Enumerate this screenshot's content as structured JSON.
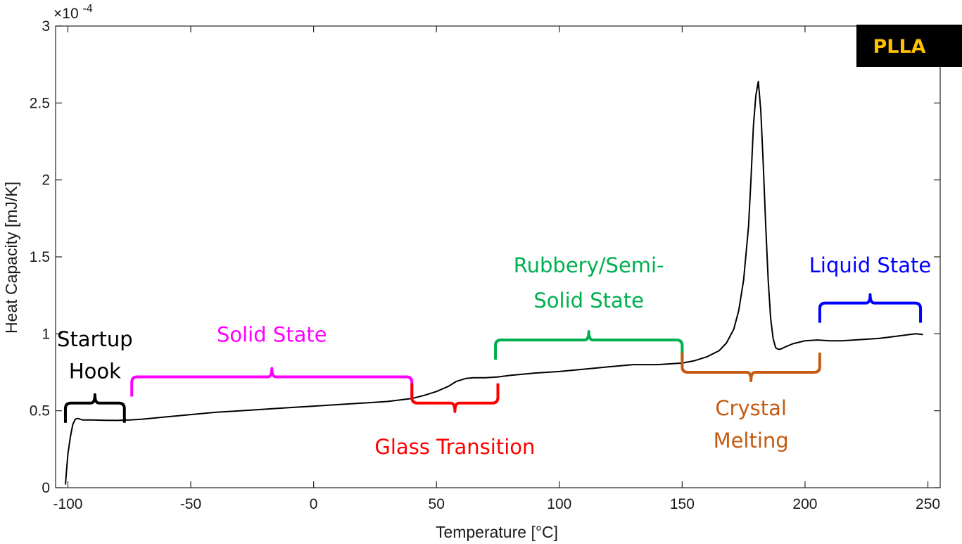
{
  "chart_data": {
    "type": "line",
    "xlabel": "Temperature [°C]",
    "ylabel": "Heat Capacity [mJ/K]",
    "y_exponent_label": "×10",
    "y_exponent_power": "-4",
    "xlim": [
      -105,
      255
    ],
    "ylim": [
      0,
      3
    ],
    "x_ticks": [
      -100,
      -50,
      0,
      50,
      100,
      150,
      200,
      250
    ],
    "x_tick_labels": [
      "-100",
      "-50",
      "0",
      "50",
      "100",
      "150",
      "200",
      "250"
    ],
    "y_ticks": [
      0,
      0.5,
      1,
      1.5,
      2,
      2.5,
      3
    ],
    "y_tick_labels": [
      "0",
      "0.5",
      "1",
      "1.5",
      "2",
      "2.5",
      "3"
    ],
    "grid": false,
    "badge": {
      "text": "PLLA",
      "background": "#000000",
      "color": "#ffc000"
    },
    "series": [
      {
        "color": "#000000",
        "x": [
          -101,
          -100.5,
          -100,
          -99,
          -98,
          -97,
          -96,
          -95,
          -94,
          -90,
          -85,
          -80,
          -75,
          -70,
          -60,
          -50,
          -40,
          -30,
          -20,
          -10,
          0,
          10,
          20,
          30,
          40,
          45,
          50,
          55,
          58,
          62,
          65,
          70,
          75,
          80,
          90,
          100,
          110,
          120,
          130,
          140,
          150,
          155,
          160,
          165,
          168,
          171,
          173,
          175,
          177,
          178,
          179,
          180,
          181,
          182,
          183,
          184,
          185,
          186,
          187,
          188,
          189,
          190,
          192,
          195,
          200,
          205,
          210,
          215,
          220,
          225,
          230,
          235,
          240,
          245,
          248
        ],
        "y": [
          0.02,
          0.12,
          0.22,
          0.33,
          0.41,
          0.445,
          0.45,
          0.445,
          0.44,
          0.44,
          0.438,
          0.437,
          0.44,
          0.445,
          0.46,
          0.475,
          0.49,
          0.5,
          0.51,
          0.52,
          0.53,
          0.54,
          0.55,
          0.56,
          0.58,
          0.6,
          0.625,
          0.66,
          0.69,
          0.71,
          0.715,
          0.715,
          0.72,
          0.73,
          0.745,
          0.755,
          0.77,
          0.785,
          0.8,
          0.8,
          0.81,
          0.825,
          0.85,
          0.89,
          0.94,
          1.03,
          1.15,
          1.35,
          1.7,
          2.0,
          2.35,
          2.55,
          2.64,
          2.45,
          2.1,
          1.7,
          1.35,
          1.1,
          0.97,
          0.91,
          0.9,
          0.9,
          0.915,
          0.935,
          0.955,
          0.96,
          0.955,
          0.955,
          0.96,
          0.965,
          0.97,
          0.98,
          0.99,
          1.0,
          0.995
        ]
      }
    ],
    "annotations": [
      {
        "id": "startup",
        "lines": [
          "Startup",
          "Hook"
        ],
        "color": "#000000",
        "x_from": -101,
        "x_to": -77,
        "brace_y": 0.55,
        "direction": "down",
        "text_y": [
          0.92,
          0.71
        ]
      },
      {
        "id": "solid",
        "lines": [
          "Solid State"
        ],
        "color": "#ff00ff",
        "x_from": -74,
        "x_to": 40,
        "brace_y": 0.72,
        "direction": "down",
        "text_y": [
          0.95
        ]
      },
      {
        "id": "glass",
        "lines": [
          "Glass Transition"
        ],
        "color": "#ff0000",
        "x_from": 40,
        "x_to": 75,
        "brace_y": 0.55,
        "direction": "up",
        "text_y": [
          0.22
        ]
      },
      {
        "id": "rubbery",
        "lines": [
          "Rubbery/Semi-",
          "Solid State"
        ],
        "color": "#00b050",
        "x_from": 74,
        "x_to": 150,
        "brace_y": 0.96,
        "direction": "down",
        "text_y": [
          1.4,
          1.17
        ]
      },
      {
        "id": "crystal",
        "lines": [
          "Crystal",
          "Melting"
        ],
        "color": "#c55a11",
        "x_from": 150,
        "x_to": 206,
        "brace_y": 0.75,
        "direction": "up",
        "text_y": [
          0.47,
          0.26
        ]
      },
      {
        "id": "liquid",
        "lines": [
          "Liquid State"
        ],
        "color": "#0000ff",
        "x_from": 206,
        "x_to": 247,
        "brace_y": 1.2,
        "direction": "down",
        "text_y": [
          1.4
        ]
      }
    ]
  }
}
